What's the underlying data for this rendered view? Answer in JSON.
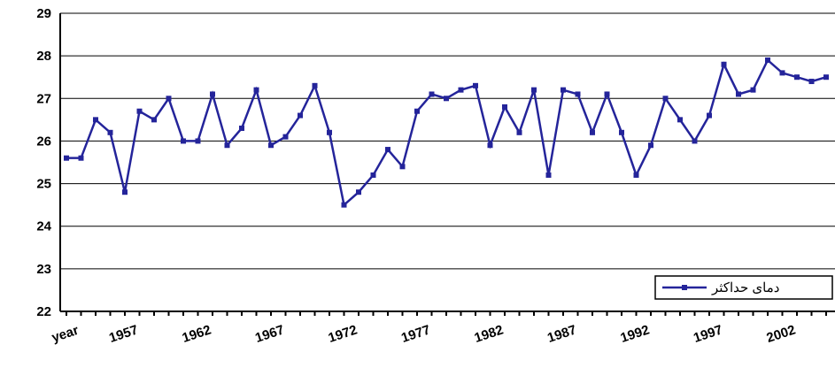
{
  "chart_data": {
    "type": "line",
    "categories": [
      "year",
      null,
      null,
      null,
      "1957",
      null,
      null,
      null,
      null,
      "1962",
      null,
      null,
      null,
      null,
      "1967",
      null,
      null,
      null,
      null,
      "1972",
      null,
      null,
      null,
      null,
      "1977",
      null,
      null,
      null,
      null,
      "1982",
      null,
      null,
      null,
      null,
      "1987",
      null,
      null,
      null,
      null,
      "1992",
      null,
      null,
      null,
      null,
      "1997",
      null,
      null,
      null,
      null,
      "2002",
      null,
      null,
      null
    ],
    "series": [
      {
        "name": "دمای حداکثر",
        "color": "#24249a",
        "values": [
          25.6,
          25.6,
          26.5,
          26.2,
          24.8,
          26.7,
          26.5,
          27.0,
          26.0,
          26.0,
          27.1,
          25.9,
          26.3,
          27.2,
          25.9,
          26.1,
          26.6,
          27.3,
          26.2,
          24.5,
          24.8,
          25.2,
          25.8,
          25.4,
          26.7,
          27.1,
          27.0,
          27.2,
          27.3,
          25.9,
          26.8,
          26.2,
          27.2,
          25.2,
          27.2,
          27.1,
          26.2,
          27.1,
          26.2,
          25.2,
          25.9,
          27.0,
          26.5,
          26.0,
          26.6,
          27.8,
          27.1,
          27.2,
          27.9,
          27.6,
          27.5,
          27.4,
          27.5
        ]
      }
    ],
    "ylim": [
      22,
      29
    ],
    "yticks": [
      22,
      23,
      24,
      25,
      26,
      27,
      28,
      29
    ],
    "grid": true,
    "legend": "lower right"
  }
}
